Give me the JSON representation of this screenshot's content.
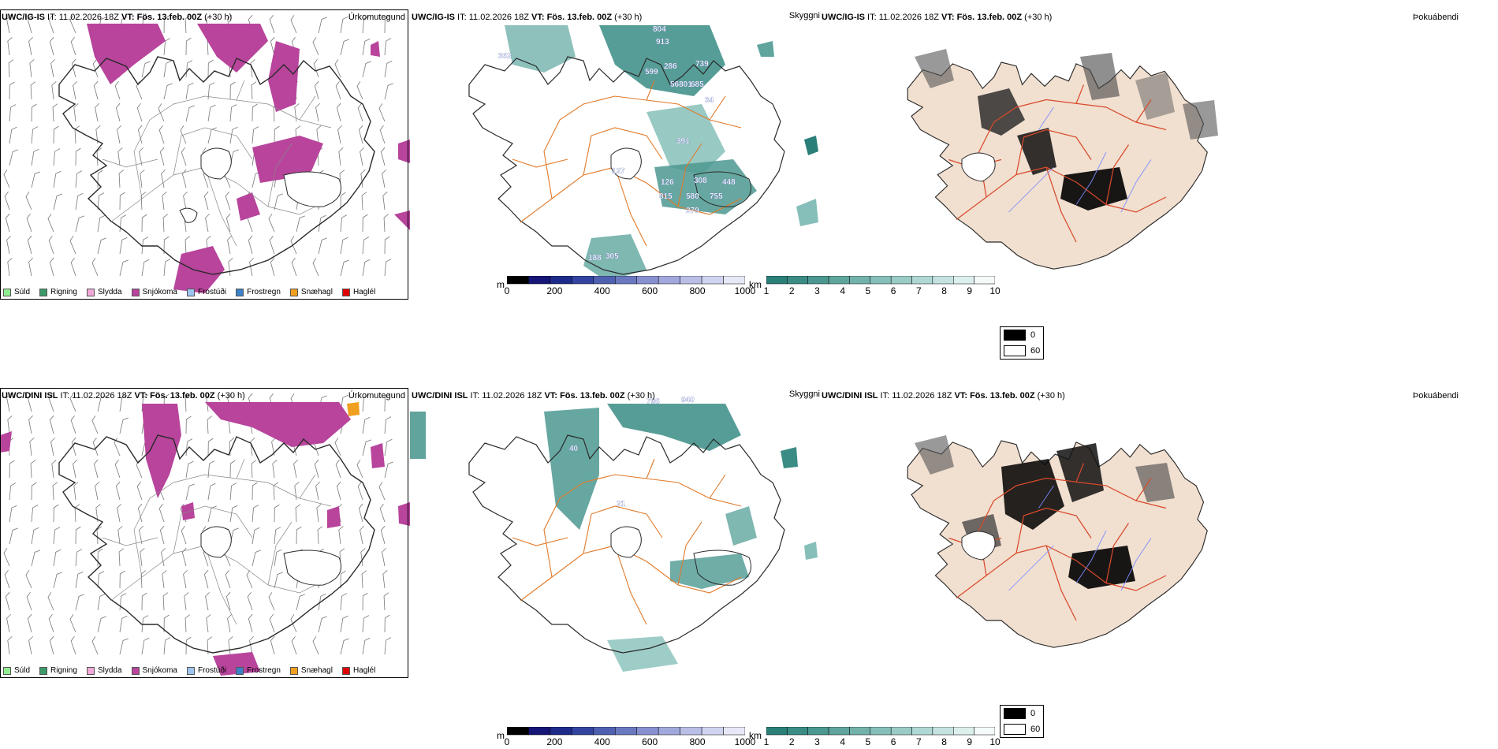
{
  "colors": {
    "snow": "#b8449c",
    "coast": "#2a2a2a",
    "road_orange": "#e07a2a",
    "road_red": "#d84a2a",
    "river_blue": "#7a8cff",
    "teal": "#2f8f86",
    "land_fill": "#f1dfd0"
  },
  "rows": [
    {
      "precip": {
        "header_model": "UWC/IG-IS",
        "header_it": " IT: 11.02.2026 18Z ",
        "header_vt": "VT: Fös. 13.feb. 00Z",
        "header_lead": " (+30 h)",
        "title": "Úrkomutegund"
      },
      "cloud": {
        "header_model": "UWC/IG-IS",
        "header_it": " IT: 11.02.2026 18Z ",
        "header_vt": "VT: Fös. 13.feb. 00Z",
        "header_lead": " (+30 h)",
        "title": "Skyggni",
        "labels": [
          "804",
          "913",
          "362",
          "286",
          "739",
          "599",
          "56801",
          "685",
          "34",
          "391",
          "127",
          "126",
          "308",
          "815",
          "580",
          "448",
          "755",
          "279",
          "188",
          "305"
        ]
      },
      "fog": {
        "header_model": "UWC/IG-IS",
        "header_it": " IT: 11.02.2026 18Z ",
        "header_vt": "VT: Fös. 13.feb. 00Z",
        "header_lead": " (+30 h)",
        "title": "Þokuábendi"
      }
    },
    {
      "precip": {
        "header_model": "UWC/DINI ISL",
        "header_it": " IT: 11.02.2026 18Z ",
        "header_vt": "VT: Fös. 13.feb. 00Z",
        "header_lead": " (+30 h)",
        "title": "Úrkomutegund"
      },
      "cloud": {
        "header_model": "UWC/DINI ISL",
        "header_it": " IT: 11.02.2026 18Z ",
        "header_vt": "VT: Fös. 13.feb. 00Z",
        "header_lead": " (+30 h)",
        "title": "Skyggni",
        "labels": [
          "796",
          "940",
          "40",
          "21"
        ]
      },
      "fog": {
        "header_model": "UWC/DINI ISL",
        "header_it": " IT: 11.02.2026 18Z ",
        "header_vt": "VT: Fös. 13.feb. 00Z",
        "header_lead": " (+30 h)",
        "title": "Þokuábendi"
      }
    }
  ],
  "precip_legend": [
    {
      "label": "Súld",
      "color": "#90ee90"
    },
    {
      "label": "Rigning",
      "color": "#3c9a6a"
    },
    {
      "label": "Slydda",
      "color": "#f0a8d8"
    },
    {
      "label": "Snjókoma",
      "color": "#b8449c"
    },
    {
      "label": "Frostúði",
      "color": "#9ec4f0"
    },
    {
      "label": "Frostregn",
      "color": "#3c82c8"
    },
    {
      "label": "Snæhagl",
      "color": "#f0a020"
    },
    {
      "label": "Haglél",
      "color": "#e00000"
    }
  ],
  "cloud_base_bar": {
    "unit": "m",
    "ticks": [
      "0",
      "200",
      "400",
      "600",
      "800",
      "1000"
    ],
    "colors": [
      "#000000",
      "#151575",
      "#1e2a8a",
      "#3344a0",
      "#5060b0",
      "#6a78c0",
      "#8890d0",
      "#a0a8dc",
      "#b8bee6",
      "#d0d4f0",
      "#e6e8f8"
    ]
  },
  "visibility_bar": {
    "unit": "km",
    "ticks": [
      "1",
      "2",
      "3",
      "4",
      "5",
      "6",
      "7",
      "8",
      "9",
      "10"
    ],
    "colors": [
      "#2a7f78",
      "#3a8c85",
      "#4c9891",
      "#5fa59e",
      "#72b2ab",
      "#86bfb9",
      "#9acbc6",
      "#afd7d3",
      "#c4e3e0",
      "#dcefed",
      "#f4faf9"
    ]
  },
  "fog_legend": [
    {
      "label": "0",
      "color": "#000000"
    },
    {
      "label": "60",
      "color": "#ffffff"
    }
  ]
}
